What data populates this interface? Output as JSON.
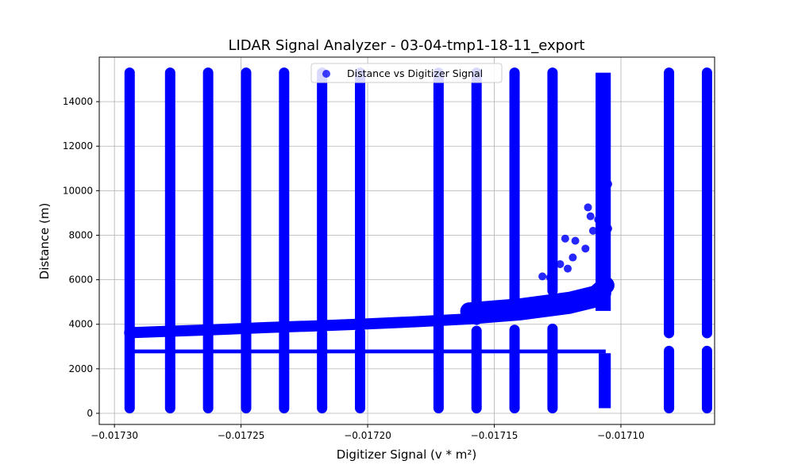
{
  "chart_data": {
    "type": "scatter",
    "title": "LIDAR Signal Analyzer - 03-04-tmp1-18-11_export",
    "xlabel": "Digitizer Signal (v * m²)",
    "ylabel": "Distance (m)",
    "xlim": [
      -0.017306,
      -0.017063
    ],
    "ylim": [
      -500,
      16000
    ],
    "xticks": [
      -0.0173,
      -0.01725,
      -0.0172,
      -0.01715,
      -0.0171
    ],
    "xtick_labels": [
      "−0.01730",
      "−0.01725",
      "−0.01720",
      "−0.01715",
      "−0.01710"
    ],
    "yticks": [
      0,
      2000,
      4000,
      6000,
      8000,
      10000,
      12000,
      14000
    ],
    "ytick_labels": [
      "0",
      "2000",
      "4000",
      "6000",
      "8000",
      "10000",
      "12000",
      "14000"
    ],
    "grid": true,
    "legend_position": "top-center",
    "series": [
      {
        "name": "Distance vs Digitizer Signal",
        "color": "#0000ff",
        "vertical_columns": [
          {
            "x": -0.017294,
            "y_ranges": [
              [
                230,
                15300
              ]
            ]
          },
          {
            "x": -0.017278,
            "y_ranges": [
              [
                230,
                2750
              ],
              [
                2850,
                3550
              ],
              [
                3750,
                15300
              ]
            ]
          },
          {
            "x": -0.017263,
            "y_ranges": [
              [
                230,
                2750
              ],
              [
                2850,
                3550
              ],
              [
                3750,
                15300
              ]
            ]
          },
          {
            "x": -0.017248,
            "y_ranges": [
              [
                230,
                2750
              ],
              [
                2850,
                3550
              ],
              [
                3800,
                15300
              ]
            ]
          },
          {
            "x": -0.017233,
            "y_ranges": [
              [
                230,
                2750
              ],
              [
                2850,
                3600
              ],
              [
                3850,
                15300
              ]
            ]
          },
          {
            "x": -0.017218,
            "y_ranges": [
              [
                230,
                2750
              ],
              [
                2850,
                3600
              ],
              [
                3900,
                15300
              ]
            ]
          },
          {
            "x": -0.017203,
            "y_ranges": [
              [
                230,
                2750
              ],
              [
                2850,
                3650
              ],
              [
                4000,
                15300
              ]
            ]
          },
          {
            "x": -0.017172,
            "y_ranges": [
              [
                230,
                15300
              ]
            ]
          },
          {
            "x": -0.017157,
            "y_ranges": [
              [
                230,
                2750
              ],
              [
                2850,
                3700
              ],
              [
                4200,
                15300
              ]
            ]
          },
          {
            "x": -0.017142,
            "y_ranges": [
              [
                230,
                2750
              ],
              [
                2850,
                3750
              ],
              [
                4500,
                15300
              ]
            ]
          },
          {
            "x": -0.017127,
            "y_ranges": [
              [
                230,
                2750
              ],
              [
                2850,
                3800
              ],
              [
                5500,
                15300
              ]
            ]
          },
          {
            "x": -0.017081,
            "y_ranges": [
              [
                230,
                2800
              ],
              [
                3600,
                15300
              ]
            ]
          },
          {
            "x": -0.017066,
            "y_ranges": [
              [
                230,
                2800
              ],
              [
                3600,
                15300
              ]
            ]
          }
        ],
        "horizontal_bands": [
          {
            "x_range": [
              -0.017294,
              -0.017106
            ],
            "y": 2780,
            "thickness": 170
          }
        ],
        "trend_curve": [
          [
            -0.017294,
            3620
          ],
          [
            -0.01728,
            3680
          ],
          [
            -0.01726,
            3760
          ],
          [
            -0.01724,
            3850
          ],
          [
            -0.01722,
            3930
          ],
          [
            -0.0172,
            4020
          ],
          [
            -0.01718,
            4120
          ],
          [
            -0.01716,
            4240
          ],
          [
            -0.01714,
            4420
          ],
          [
            -0.01712,
            4720
          ],
          [
            -0.01711,
            5000
          ],
          [
            -0.017106,
            5400
          ]
        ],
        "dense_region": {
          "x_range": [
            -0.01711,
            -0.017104
          ],
          "y_range": [
            4600,
            15300
          ]
        },
        "low_tail": {
          "x_range": [
            -0.01711,
            -0.017104
          ],
          "y_range": [
            230,
            2700
          ]
        },
        "scatter_points": [
          [
            -0.017131,
            6150
          ],
          [
            -0.017128,
            6100
          ],
          [
            -0.017124,
            6700
          ],
          [
            -0.017121,
            6500
          ],
          [
            -0.017119,
            7000
          ],
          [
            -0.017122,
            7850
          ],
          [
            -0.017118,
            7750
          ],
          [
            -0.017114,
            7400
          ],
          [
            -0.017111,
            8200
          ],
          [
            -0.017108,
            7900
          ],
          [
            -0.017112,
            8850
          ],
          [
            -0.017109,
            8700
          ],
          [
            -0.017113,
            9250
          ],
          [
            -0.017108,
            9200
          ],
          [
            -0.017106,
            9500
          ],
          [
            -0.017105,
            8300
          ],
          [
            -0.017107,
            12100
          ],
          [
            -0.017106,
            11900
          ],
          [
            -0.017105,
            10300
          ]
        ]
      }
    ]
  }
}
